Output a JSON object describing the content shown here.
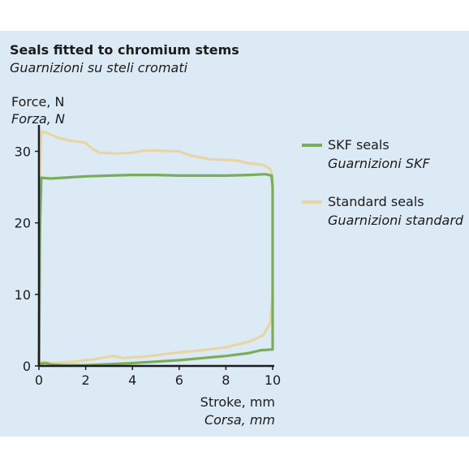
{
  "chart_data": {
    "type": "line",
    "title": "Seals fitted to chromium stems",
    "subtitle": "Guarnizioni su steli cromati",
    "ylabel": "Force, N",
    "ylabel_it": "Forza, N",
    "xlabel": "Stroke, mm",
    "xlabel_it": "Corsa, mm",
    "xlim": [
      0,
      10
    ],
    "ylim": [
      0,
      33
    ],
    "xticks": [
      "0",
      "2",
      "4",
      "6",
      "8",
      "10"
    ],
    "yticks": [
      "0",
      "10",
      "20",
      "30"
    ],
    "xtick_values": [
      0,
      2,
      4,
      6,
      8,
      10
    ],
    "ytick_values": [
      0,
      10,
      20,
      30
    ],
    "grid": false,
    "legend_position": "right",
    "series": [
      {
        "name": "SKF seals",
        "name_it": "Guarnizioni SKF",
        "color": "#7aad5a",
        "points": [
          [
            0,
            0
          ],
          [
            0.05,
            20
          ],
          [
            0.1,
            26.3
          ],
          [
            0.5,
            26.2
          ],
          [
            1,
            26.3
          ],
          [
            2,
            26.5
          ],
          [
            3,
            26.6
          ],
          [
            4,
            26.7
          ],
          [
            5,
            26.7
          ],
          [
            6,
            26.6
          ],
          [
            7,
            26.6
          ],
          [
            8,
            26.6
          ],
          [
            9,
            26.7
          ],
          [
            9.7,
            26.8
          ],
          [
            9.95,
            26.6
          ],
          [
            10,
            25
          ],
          [
            10,
            2.3
          ],
          [
            9.5,
            2.2
          ],
          [
            9,
            1.8
          ],
          [
            8,
            1.4
          ],
          [
            7,
            1.1
          ],
          [
            6,
            0.8
          ],
          [
            5,
            0.6
          ],
          [
            4,
            0.4
          ],
          [
            3,
            0.25
          ],
          [
            2,
            0.1
          ],
          [
            1,
            0.1
          ],
          [
            0.5,
            0.2
          ],
          [
            0.3,
            0.4
          ],
          [
            0,
            0.3
          ]
        ]
      },
      {
        "name": "Standard seals",
        "name_it": "Guarnizioni standard",
        "color": "#e8d5a3",
        "points": [
          [
            0,
            0
          ],
          [
            0.05,
            28
          ],
          [
            0.1,
            32.8
          ],
          [
            0.4,
            32.5
          ],
          [
            0.8,
            31.9
          ],
          [
            1.3,
            31.5
          ],
          [
            2,
            31.2
          ],
          [
            2.3,
            30.3
          ],
          [
            2.6,
            29.8
          ],
          [
            3.3,
            29.7
          ],
          [
            4,
            29.8
          ],
          [
            4.5,
            30.1
          ],
          [
            5,
            30.1
          ],
          [
            6,
            30.0
          ],
          [
            6.5,
            29.4
          ],
          [
            7.3,
            28.9
          ],
          [
            8,
            28.8
          ],
          [
            8.5,
            28.7
          ],
          [
            9,
            28.3
          ],
          [
            9.6,
            28.1
          ],
          [
            9.9,
            27.5
          ],
          [
            10,
            26.5
          ],
          [
            10,
            10
          ],
          [
            9.9,
            6.0
          ],
          [
            9.6,
            4.3
          ],
          [
            9,
            3.4
          ],
          [
            8.5,
            3.0
          ],
          [
            8,
            2.6
          ],
          [
            7,
            2.2
          ],
          [
            6,
            1.9
          ],
          [
            5,
            1.5
          ],
          [
            4.5,
            1.3
          ],
          [
            4,
            1.2
          ],
          [
            3.6,
            1.1
          ],
          [
            3.2,
            1.4
          ],
          [
            2.8,
            1.2
          ],
          [
            2.3,
            0.9
          ],
          [
            2,
            0.8
          ],
          [
            1.5,
            0.6
          ],
          [
            1,
            0.5
          ],
          [
            0.5,
            0.4
          ],
          [
            0.2,
            0.6
          ],
          [
            0,
            0.5
          ]
        ]
      }
    ]
  }
}
